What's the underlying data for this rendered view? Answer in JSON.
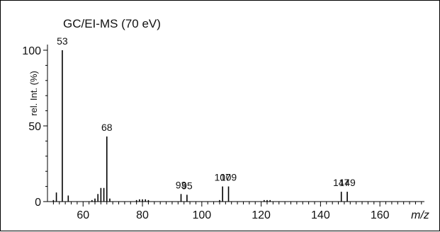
{
  "chart_data": {
    "type": "bar",
    "title": "GC/EI-MS (70 eV)",
    "xlabel": "m/z",
    "ylabel": "rel. Int. (%)",
    "xlim": [
      48,
      175
    ],
    "ylim": [
      0,
      105
    ],
    "x_ticks": [
      60,
      80,
      100,
      120,
      140,
      160
    ],
    "y_ticks": [
      0,
      50,
      100
    ],
    "grid": false,
    "colors": {
      "bars": "#000000",
      "axes": "#000000",
      "text": "#111111"
    },
    "peaks": [
      {
        "x": 50,
        "y": 1
      },
      {
        "x": 51,
        "y": 6
      },
      {
        "x": 53,
        "y": 100,
        "label": "53"
      },
      {
        "x": 55,
        "y": 4
      },
      {
        "x": 63,
        "y": 1
      },
      {
        "x": 64,
        "y": 2
      },
      {
        "x": 65,
        "y": 5
      },
      {
        "x": 66,
        "y": 9
      },
      {
        "x": 67,
        "y": 9
      },
      {
        "x": 68,
        "y": 43,
        "label": "68"
      },
      {
        "x": 69,
        "y": 2
      },
      {
        "x": 78,
        "y": 1
      },
      {
        "x": 79,
        "y": 1.5
      },
      {
        "x": 80,
        "y": 1.5
      },
      {
        "x": 81,
        "y": 1.5
      },
      {
        "x": 82,
        "y": 1
      },
      {
        "x": 93,
        "y": 5,
        "label": "93"
      },
      {
        "x": 95,
        "y": 4.5,
        "label": "95"
      },
      {
        "x": 106,
        "y": 1
      },
      {
        "x": 107,
        "y": 10,
        "label": "107"
      },
      {
        "x": 109,
        "y": 10,
        "label": "109"
      },
      {
        "x": 121,
        "y": 1
      },
      {
        "x": 122,
        "y": 1
      },
      {
        "x": 123,
        "y": 1
      },
      {
        "x": 147,
        "y": 6.5,
        "label": "147"
      },
      {
        "x": 149,
        "y": 6.5,
        "label": "149"
      }
    ]
  }
}
